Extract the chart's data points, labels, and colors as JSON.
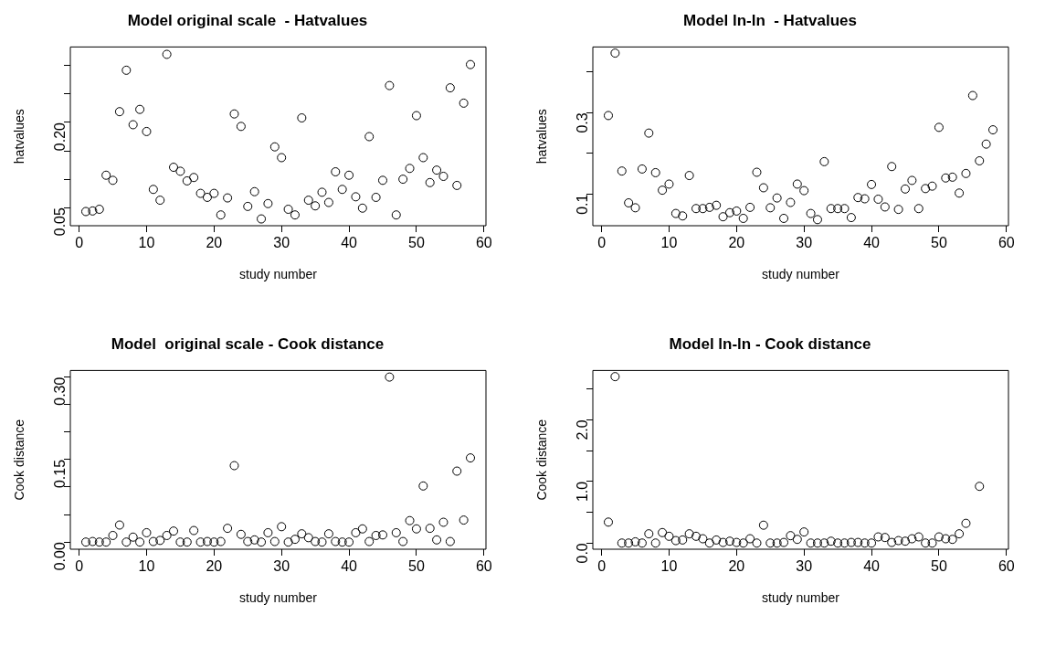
{
  "chart_data": [
    {
      "type": "scatter",
      "title": "Model original scale  - Hatvalues",
      "xlabel": "study number",
      "ylabel": "hatvalues",
      "color": "#000000",
      "marker": "circle",
      "grid": false,
      "x": [
        1,
        2,
        3,
        4,
        5,
        6,
        7,
        8,
        9,
        10,
        11,
        12,
        13,
        14,
        15,
        16,
        17,
        18,
        19,
        20,
        21,
        22,
        23,
        24,
        25,
        26,
        27,
        28,
        29,
        30,
        31,
        32,
        33,
        34,
        35,
        36,
        37,
        38,
        39,
        40,
        41,
        42,
        43,
        44,
        45,
        46,
        47,
        48,
        49,
        50,
        51,
        52,
        53,
        54,
        55,
        56,
        57,
        58
      ],
      "values": [
        0.043,
        0.044,
        0.047,
        0.107,
        0.098,
        0.219,
        0.292,
        0.196,
        0.223,
        0.184,
        0.082,
        0.063,
        0.32,
        0.121,
        0.114,
        0.097,
        0.103,
        0.075,
        0.068,
        0.075,
        0.037,
        0.067,
        0.215,
        0.193,
        0.052,
        0.078,
        0.03,
        0.057,
        0.157,
        0.138,
        0.047,
        0.037,
        0.208,
        0.063,
        0.053,
        0.077,
        0.059,
        0.113,
        0.082,
        0.107,
        0.069,
        0.049,
        0.175,
        0.068,
        0.098,
        0.265,
        0.037,
        0.1,
        0.119,
        0.212,
        0.138,
        0.094,
        0.116,
        0.105,
        0.261,
        0.089,
        0.234,
        0.302
      ],
      "xlim": [
        -1.3,
        60.3
      ],
      "xticks": [
        0,
        10,
        20,
        30,
        40,
        50,
        60
      ],
      "ylim": [
        0.018,
        0.333
      ],
      "yticks": [
        0.05,
        {
          "value": 0.1,
          "label": null
        },
        {
          "value": 0.15,
          "label": null
        },
        {
          "value": 0.2,
          "label": "0.20"
        },
        {
          "value": 0.25,
          "label": null
        },
        {
          "value": 0.3,
          "label": null
        }
      ]
    },
    {
      "type": "scatter",
      "title": "Model ln-ln  - Hatvalues",
      "xlabel": "study number",
      "ylabel": "hatvalues",
      "color": "#000000",
      "marker": "circle",
      "grid": false,
      "x": [
        1,
        2,
        3,
        4,
        5,
        6,
        7,
        8,
        9,
        10,
        11,
        12,
        13,
        14,
        15,
        16,
        17,
        18,
        19,
        20,
        21,
        22,
        23,
        24,
        25,
        26,
        27,
        28,
        29,
        30,
        31,
        32,
        33,
        34,
        35,
        36,
        37,
        38,
        39,
        40,
        41,
        42,
        43,
        44,
        45,
        46,
        47,
        48,
        49,
        50,
        51,
        52,
        53,
        54,
        55,
        56,
        57,
        58
      ],
      "values": [
        0.293,
        0.446,
        0.157,
        0.079,
        0.067,
        0.162,
        0.25,
        0.153,
        0.11,
        0.125,
        0.053,
        0.047,
        0.146,
        0.065,
        0.065,
        0.068,
        0.073,
        0.045,
        0.055,
        0.059,
        0.041,
        0.068,
        0.154,
        0.116,
        0.067,
        0.091,
        0.041,
        0.08,
        0.125,
        0.109,
        0.053,
        0.038,
        0.18,
        0.065,
        0.065,
        0.065,
        0.043,
        0.092,
        0.089,
        0.124,
        0.088,
        0.069,
        0.168,
        0.063,
        0.113,
        0.134,
        0.065,
        0.114,
        0.12,
        0.264,
        0.14,
        0.142,
        0.103,
        0.151,
        0.342,
        0.182,
        0.223,
        0.258
      ],
      "xlim": [
        -1.3,
        60.3
      ],
      "xticks": [
        0,
        10,
        20,
        30,
        40,
        50,
        60
      ],
      "ylim": [
        0.023,
        0.461
      ],
      "yticks": [
        0.1,
        {
          "value": 0.2,
          "label": null
        },
        0.3,
        {
          "value": 0.4,
          "label": null
        }
      ]
    },
    {
      "type": "scatter",
      "title": "Model  original scale - Cook distance",
      "xlabel": "study number",
      "ylabel": "Cook distance",
      "color": "#000000",
      "marker": "circle",
      "grid": false,
      "x": [
        1,
        2,
        3,
        4,
        5,
        6,
        7,
        8,
        9,
        10,
        11,
        12,
        13,
        14,
        15,
        16,
        17,
        18,
        19,
        20,
        21,
        22,
        23,
        24,
        25,
        26,
        27,
        28,
        29,
        30,
        31,
        32,
        33,
        34,
        35,
        36,
        37,
        38,
        39,
        40,
        41,
        42,
        43,
        44,
        45,
        46,
        47,
        48,
        49,
        50,
        51,
        52,
        53,
        54,
        55,
        56,
        57,
        58
      ],
      "values": [
        0.0,
        0.001,
        0.0,
        0.0,
        0.012,
        0.031,
        0.0,
        0.009,
        0.0,
        0.017,
        0.001,
        0.003,
        0.012,
        0.02,
        0.0,
        0.0,
        0.021,
        0.0,
        0.001,
        0.0,
        0.001,
        0.025,
        0.139,
        0.014,
        0.001,
        0.004,
        0.0,
        0.017,
        0.001,
        0.028,
        0.0,
        0.005,
        0.015,
        0.008,
        0.001,
        0.0,
        0.015,
        0.001,
        0.0,
        0.0,
        0.017,
        0.024,
        0.001,
        0.012,
        0.013,
        0.3,
        0.017,
        0.001,
        0.039,
        0.024,
        0.102,
        0.025,
        0.004,
        0.036,
        0.001,
        0.129,
        0.04,
        0.153
      ],
      "xlim": [
        -1.3,
        60.3
      ],
      "xticks": [
        0,
        10,
        20,
        30,
        40,
        50,
        60
      ],
      "ylim": [
        -0.013,
        0.312
      ],
      "yticks": [
        {
          "value": 0,
          "label": "0.00"
        },
        {
          "value": 0.05,
          "label": null
        },
        {
          "value": 0.1,
          "label": null
        },
        0.15,
        {
          "value": 0.2,
          "label": null
        },
        {
          "value": 0.25,
          "label": null
        },
        {
          "value": 0.3,
          "label": "0.30"
        }
      ]
    },
    {
      "type": "scatter",
      "title": "Model ln-ln - Cook distance",
      "xlabel": "study number",
      "ylabel": "Cook distance",
      "color": "#000000",
      "marker": "circle",
      "grid": false,
      "x": [
        1,
        2,
        3,
        4,
        5,
        6,
        7,
        8,
        9,
        10,
        11,
        12,
        13,
        14,
        15,
        16,
        17,
        18,
        19,
        20,
        21,
        22,
        23,
        24,
        25,
        26,
        27,
        28,
        29,
        30,
        31,
        32,
        33,
        34,
        35,
        36,
        37,
        38,
        39,
        40,
        41,
        42,
        43,
        44,
        45,
        46,
        47,
        48,
        49,
        50,
        51,
        52,
        53,
        54,
        56
      ],
      "values": [
        0.34,
        2.7,
        0.0,
        0.0,
        0.02,
        0.0,
        0.15,
        0.0,
        0.17,
        0.11,
        0.04,
        0.05,
        0.15,
        0.11,
        0.07,
        0.0,
        0.05,
        0.01,
        0.03,
        0.01,
        0.0,
        0.07,
        0.0,
        0.29,
        0.0,
        0.0,
        0.01,
        0.12,
        0.06,
        0.18,
        0.0,
        0.0,
        0.0,
        0.03,
        0.0,
        0.0,
        0.01,
        0.01,
        0.0,
        0.0,
        0.1,
        0.09,
        0.01,
        0.04,
        0.03,
        0.07,
        0.1,
        0.0,
        0.0,
        0.1,
        0.07,
        0.06,
        0.15,
        0.32,
        0.92
      ],
      "xlim": [
        -1.3,
        60.3
      ],
      "xticks": [
        0,
        10,
        20,
        30,
        40,
        50,
        60
      ],
      "ylim": [
        -0.1,
        2.8
      ],
      "yticks": [
        {
          "value": 0,
          "label": "0.0"
        },
        {
          "value": 0.5,
          "label": null
        },
        {
          "value": 1,
          "label": "1.0"
        },
        {
          "value": 1.5,
          "label": null
        },
        {
          "value": 2,
          "label": "2.0"
        },
        {
          "value": 2.5,
          "label": null
        }
      ]
    }
  ]
}
